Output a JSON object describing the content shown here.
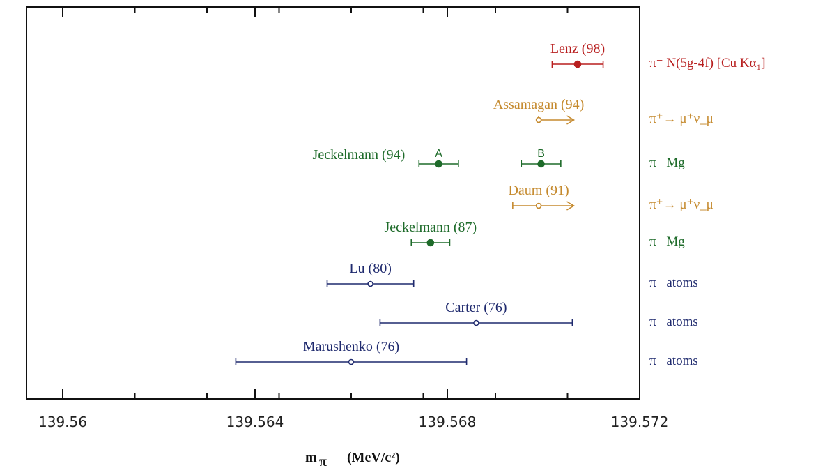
{
  "chart_data": {
    "type": "scatter",
    "title": "",
    "xlabel": "m_π (MeV/c²)",
    "xlabel_parts": {
      "main": "m",
      "sub": "π",
      "units": "(MeV/c²)"
    },
    "xlim": [
      139.56,
      139.572
    ],
    "xticks": [
      {
        "value": 139.56,
        "label": "139.56"
      },
      {
        "value": 139.564,
        "label": "139.564"
      },
      {
        "value": 139.568,
        "label": "139.568"
      },
      {
        "value": 139.572,
        "label": "139.572"
      }
    ],
    "minor_ticks": [
      139.5615,
      139.563,
      139.5645,
      139.566,
      139.5675,
      139.569,
      139.5705
    ],
    "grid": false,
    "measurements": [
      {
        "label": "Lenz (98)",
        "process": "π⁻ N(5g-4f)  [Cu Kα₁]",
        "value": 139.57071,
        "lo": 139.57018,
        "hi": 139.57124,
        "marker": "filled",
        "color": "#b81f1f"
      },
      {
        "label": "Assamagan (94)",
        "process": "π⁺→ μ⁺ν_μ",
        "value": 139.5699,
        "lo": 139.5699,
        "hi": 139.57063,
        "marker": "open",
        "color": "#c58a2e",
        "lower_limit": true
      },
      {
        "label": "Jeckelmann (94)",
        "sublabel": "A",
        "process": "π⁻ Mg",
        "value": 139.56782,
        "lo": 139.56741,
        "hi": 139.56823,
        "marker": "filled",
        "color": "#1e6b2a"
      },
      {
        "label": "",
        "sublabel": "B",
        "process": "",
        "value": 139.56995,
        "lo": 139.56954,
        "hi": 139.57036,
        "marker": "filled",
        "color": "#1e6b2a"
      },
      {
        "label": "Daum (91)",
        "process": "π⁺→ μ⁺ν_μ",
        "value": 139.5699,
        "lo": 139.56936,
        "hi": 139.57063,
        "marker": "open",
        "color": "#c58a2e",
        "lower_limit": true
      },
      {
        "label": "Jeckelmann (87)",
        "process": "π⁻ Mg",
        "value": 139.56765,
        "lo": 139.56725,
        "hi": 139.56805,
        "marker": "filled",
        "color": "#1e6b2a"
      },
      {
        "label": "Lu (80)",
        "process": "π⁻ atoms",
        "value": 139.5664,
        "lo": 139.5655,
        "hi": 139.5673,
        "marker": "open",
        "color": "#1f2a6e"
      },
      {
        "label": "Carter (76)",
        "process": "π⁻ atoms",
        "value": 139.5686,
        "lo": 139.5666,
        "hi": 139.5706,
        "marker": "open",
        "color": "#1f2a6e"
      },
      {
        "label": "Marushenko (76)",
        "process": "π⁻ atoms",
        "value": 139.566,
        "lo": 139.5636,
        "hi": 139.5684,
        "marker": "open",
        "color": "#1f2a6e"
      }
    ]
  }
}
